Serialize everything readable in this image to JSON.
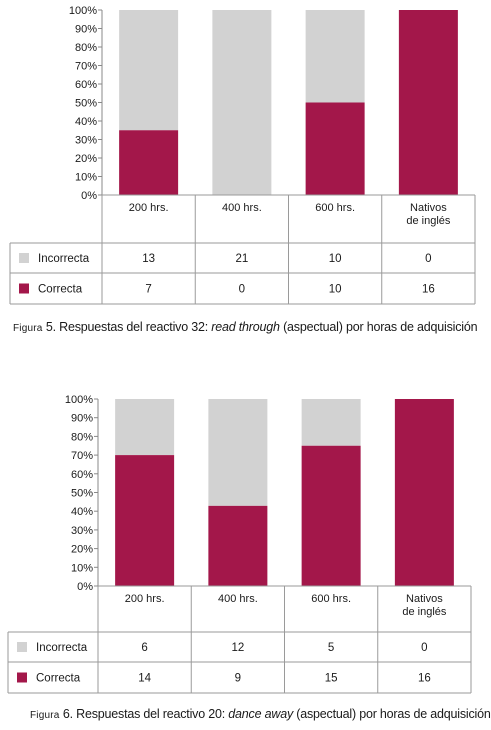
{
  "colors": {
    "correcta": "#a3174a",
    "incorrecta": "#d2d2d2"
  },
  "chart_data": [
    {
      "type": "bar",
      "stacked": true,
      "normalized": true,
      "categories": [
        "200 hrs.",
        "400 hrs.",
        "600 hrs.",
        "Nativos\nde inglés"
      ],
      "series": [
        {
          "name": "Correcta",
          "values": [
            7,
            0,
            10,
            16
          ]
        },
        {
          "name": "Incorrecta",
          "values": [
            13,
            21,
            10,
            0
          ]
        }
      ],
      "y_ticks": [
        "0%",
        "10%",
        "20%",
        "30%",
        "40%",
        "50%",
        "60%",
        "70%",
        "80%",
        "90%",
        "100%"
      ],
      "ylim": [
        0,
        100
      ],
      "grid": false,
      "data_table": true,
      "caption": {
        "prefix": "Figura",
        "number": "5.",
        "text_before": "Respuestas del reactivo 32:",
        "italic": "read through",
        "text_after": "(aspectual) por horas de adquisición"
      }
    },
    {
      "type": "bar",
      "stacked": true,
      "normalized": true,
      "categories": [
        "200 hrs.",
        "400 hrs.",
        "600 hrs.",
        "Nativos\nde inglés"
      ],
      "series": [
        {
          "name": "Correcta",
          "values": [
            14,
            9,
            15,
            16
          ]
        },
        {
          "name": "Incorrecta",
          "values": [
            6,
            12,
            5,
            0
          ]
        }
      ],
      "y_ticks": [
        "0%",
        "10%",
        "20%",
        "30%",
        "40%",
        "50%",
        "60%",
        "70%",
        "80%",
        "90%",
        "100%"
      ],
      "ylim": [
        0,
        100
      ],
      "grid": false,
      "data_table": true,
      "caption": {
        "prefix": "Figura",
        "number": "6.",
        "text_before": "Respuestas del reactivo 20:",
        "italic": "dance away",
        "text_after": "(aspectual) por horas de adquisición"
      }
    }
  ]
}
